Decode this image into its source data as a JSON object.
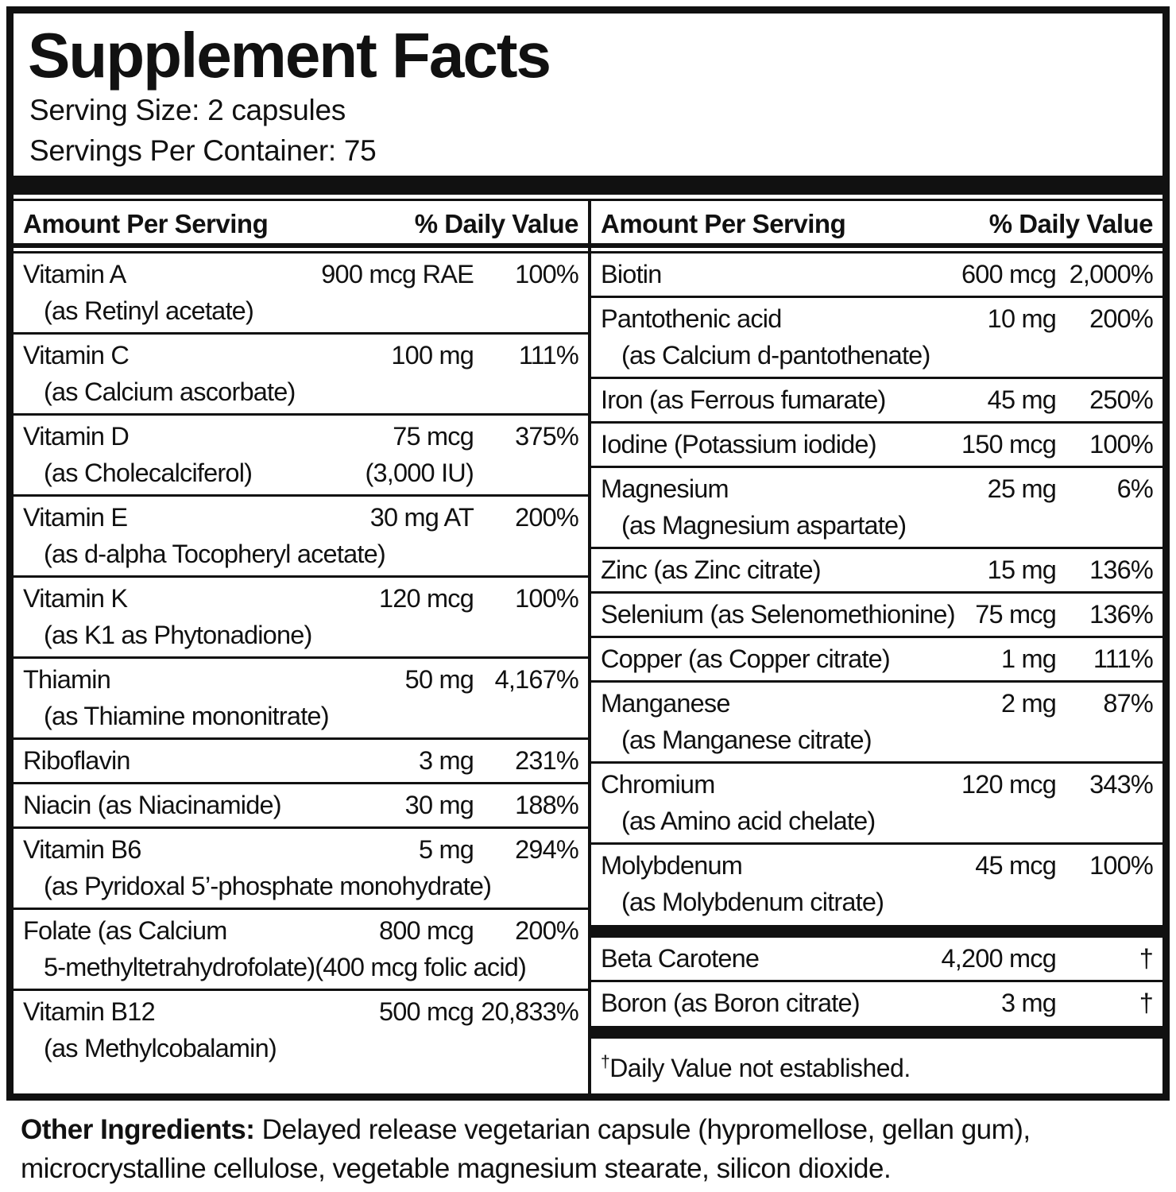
{
  "colors": {
    "ink": "#111111",
    "background": "#ffffff"
  },
  "label": {
    "title": "Supplement Facts",
    "serving_size": "Serving Size: 2 capsules",
    "servings_per_container": "Servings Per Container: 75"
  },
  "table": {
    "amount_header": "Amount Per Serving",
    "dv_header": "% Daily Value",
    "left_rows": [
      {
        "name": "Vitamin A",
        "amount": "900 mcg RAE",
        "dv": "100%",
        "sub": "(as Retinyl acetate)"
      },
      {
        "name": "Vitamin C",
        "amount": "100 mg",
        "dv": "111%",
        "sub": "(as Calcium ascorbate)"
      },
      {
        "name": "Vitamin D",
        "amount": "75 mcg",
        "dv": "375%",
        "sub": "(as Cholecalciferol)",
        "sub_amount": "(3,000 IU)"
      },
      {
        "name": "Vitamin E",
        "amount": "30 mg AT",
        "dv": "200%",
        "sub": "(as d-alpha Tocopheryl acetate)"
      },
      {
        "name": "Vitamin K",
        "amount": "120 mcg",
        "dv": "100%",
        "sub": "(as K1 as Phytonadione)"
      },
      {
        "name": "Thiamin",
        "amount": "50 mg",
        "dv": "4,167%",
        "sub": "(as Thiamine mononitrate)"
      },
      {
        "name": "Riboflavin",
        "amount": "3 mg",
        "dv": "231%"
      },
      {
        "name": "Niacin (as Niacinamide)",
        "amount": "30 mg",
        "dv": "188%"
      },
      {
        "name": "Vitamin B6",
        "amount": "5 mg",
        "dv": "294%",
        "sub": "(as Pyridoxal 5’-phosphate monohydrate)"
      },
      {
        "name": "Folate (as Calcium",
        "amount": "800 mcg",
        "dv": "200%",
        "sub": "5-methyltetrahydrofolate)(400 mcg folic acid)"
      },
      {
        "name": "Vitamin B12",
        "amount": "500 mcg",
        "dv": "20,833%",
        "sub": "(as Methylcobalamin)"
      }
    ],
    "right_rows": [
      {
        "name": "Biotin",
        "amount": "600 mcg",
        "dv": "2,000%"
      },
      {
        "name": "Pantothenic acid",
        "amount": "10 mg",
        "dv": "200%",
        "sub": "(as Calcium d-pantothenate)"
      },
      {
        "name": "Iron (as Ferrous fumarate)",
        "amount": "45 mg",
        "dv": "250%"
      },
      {
        "name": "Iodine (Potassium iodide)",
        "amount": "150 mcg",
        "dv": "100%"
      },
      {
        "name": "Magnesium",
        "amount": "25 mg",
        "dv": "6%",
        "sub": "(as Magnesium aspartate)"
      },
      {
        "name": "Zinc (as Zinc citrate)",
        "amount": "15 mg",
        "dv": "136%"
      },
      {
        "name": "Selenium (as Selenomethionine)",
        "amount": "75 mcg",
        "dv": "136%"
      },
      {
        "name": "Copper (as Copper citrate)",
        "amount": "1 mg",
        "dv": "111%"
      },
      {
        "name": "Manganese",
        "amount": "2 mg",
        "dv": "87%",
        "sub": "(as Manganese citrate)"
      },
      {
        "name": "Chromium",
        "amount": "120 mcg",
        "dv": "343%",
        "sub": "(as Amino acid chelate)"
      },
      {
        "name": "Molybdenum",
        "amount": "45 mcg",
        "dv": "100%",
        "sub": "(as Molybdenum citrate)"
      }
    ],
    "right_rows_not_established": [
      {
        "name": "Beta Carotene",
        "amount": "4,200 mcg",
        "dv": "†"
      },
      {
        "name": "Boron (as Boron citrate)",
        "amount": "3 mg",
        "dv": "†"
      }
    ],
    "footnote": {
      "symbol": "†",
      "text": "Daily Value not established."
    }
  },
  "other_ingredients": {
    "label": "Other Ingredients:",
    "text": "Delayed release vegetarian capsule (hypromellose, gellan gum), microcrystalline cellulose, vegetable magnesium stearate, silicon dioxide."
  }
}
